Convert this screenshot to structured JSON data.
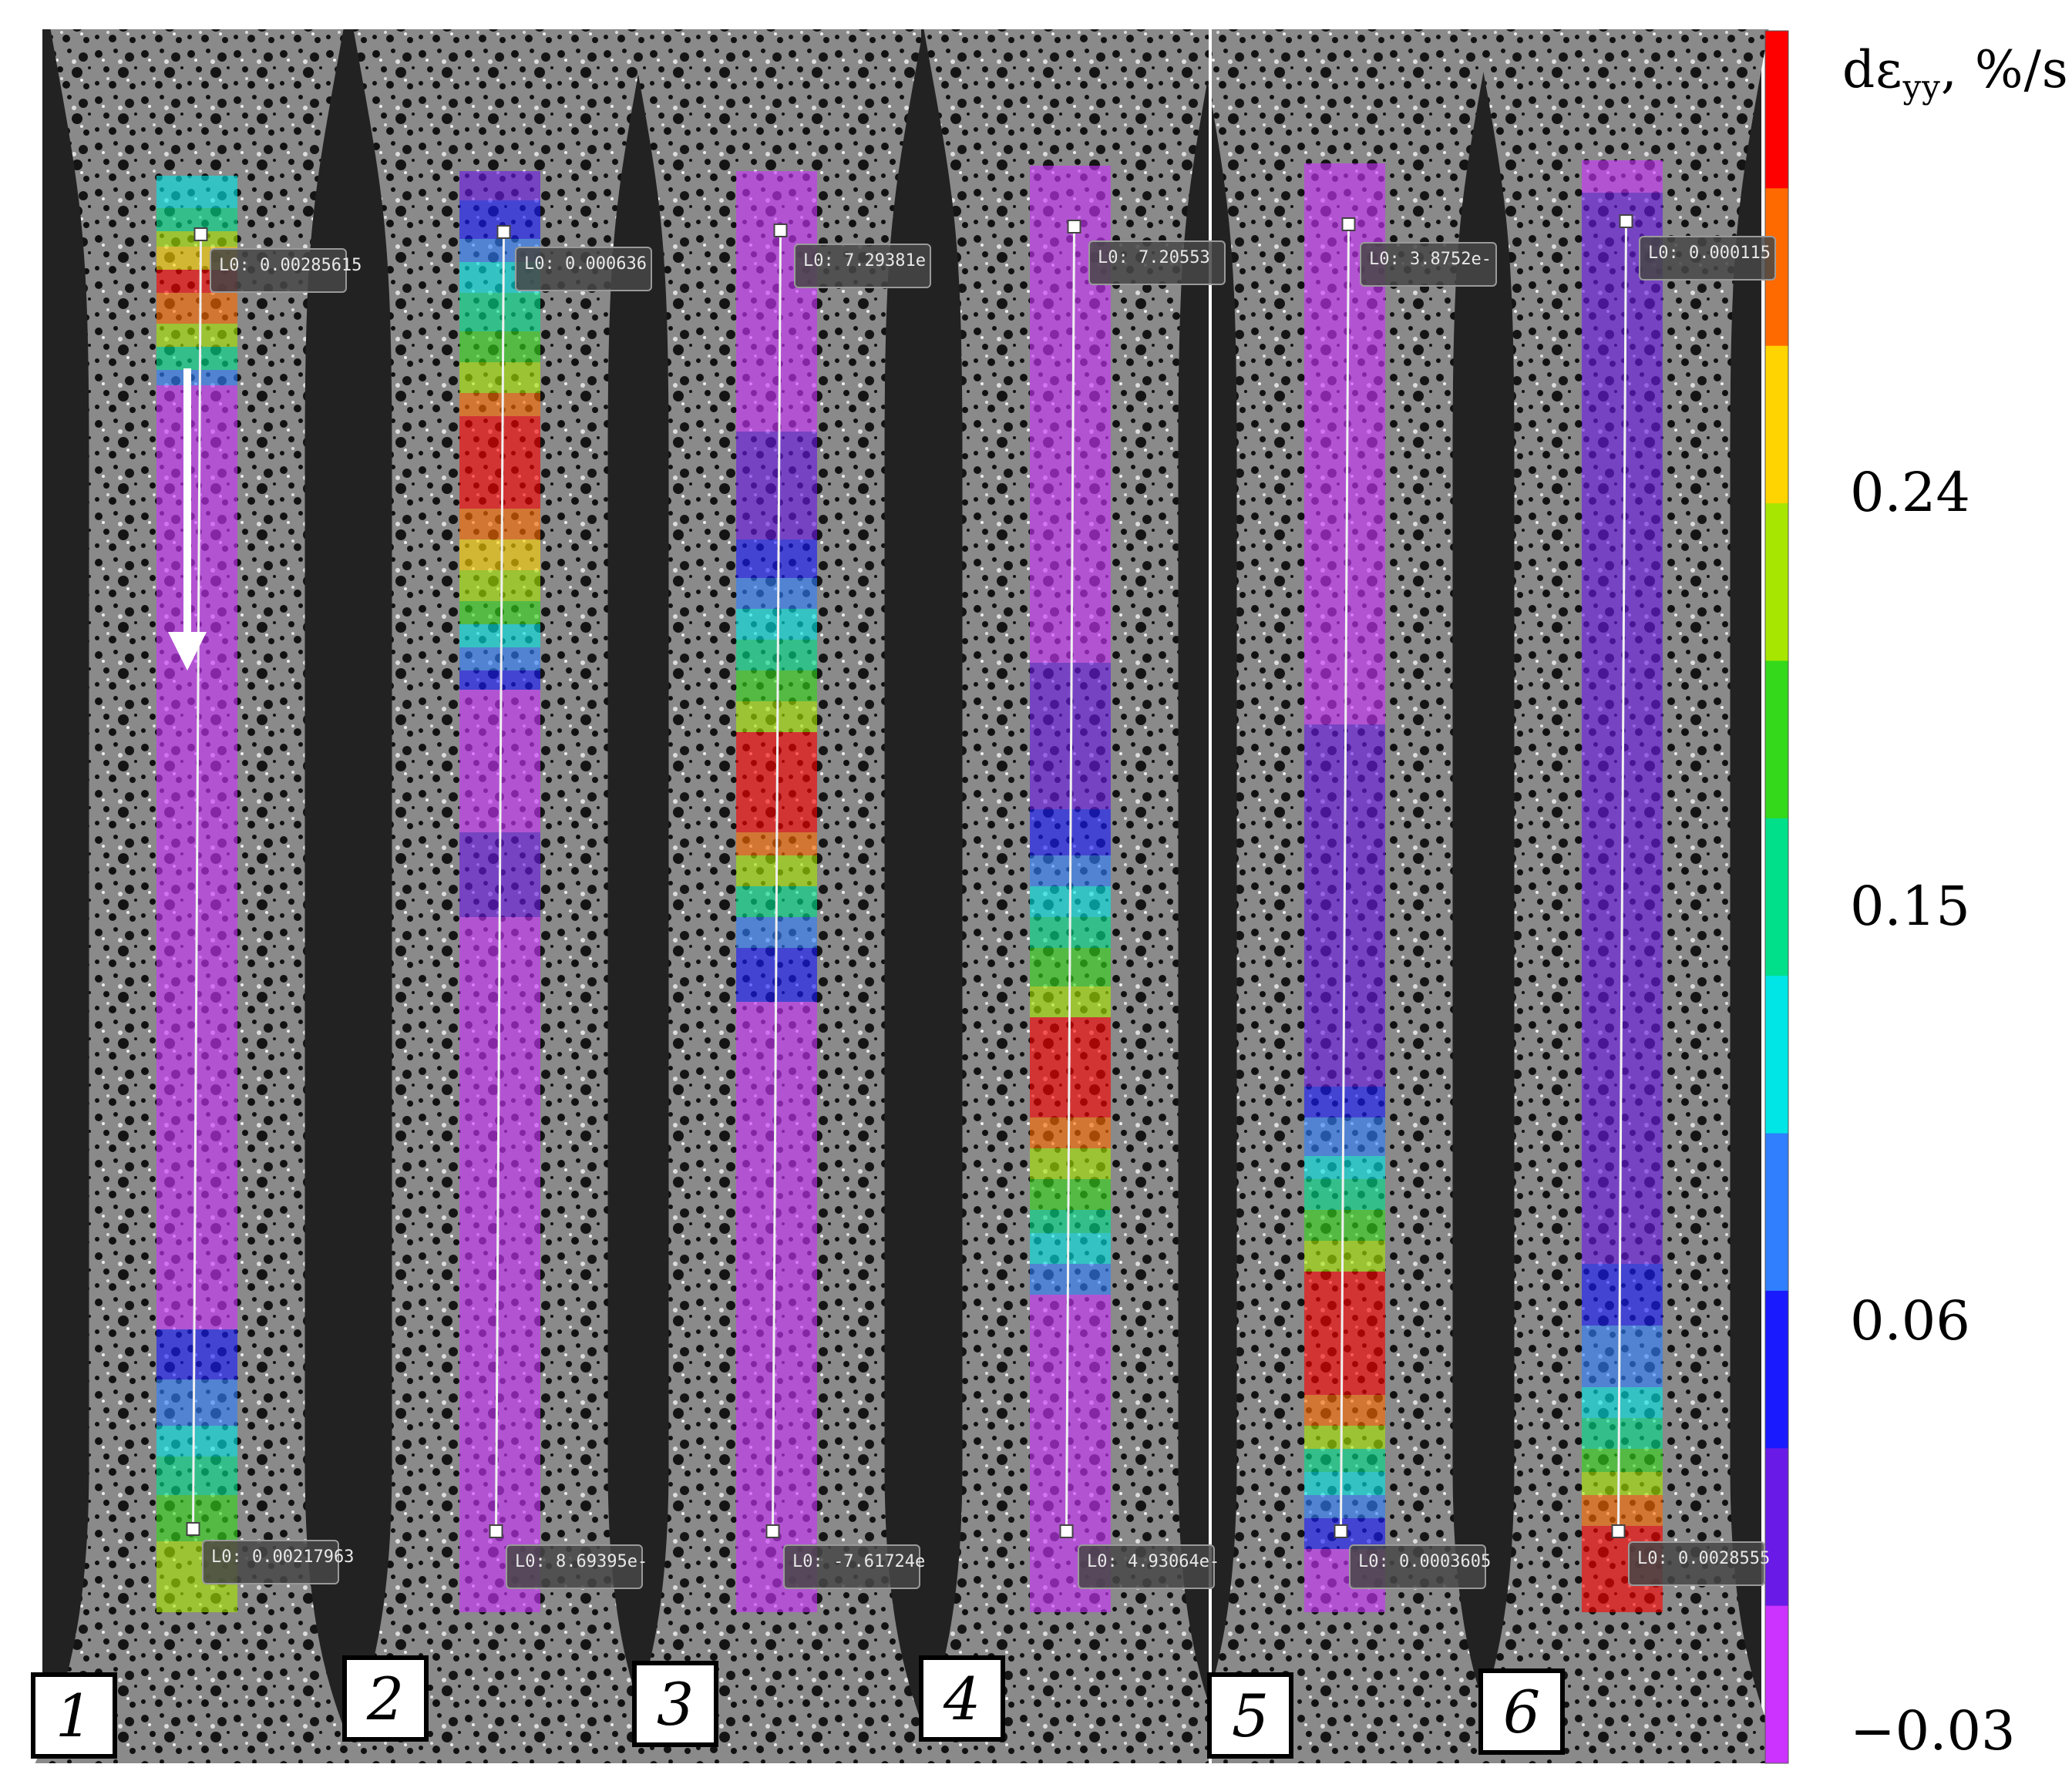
{
  "scale": {
    "title_main": "dε",
    "title_sub": "yy",
    "title_unit": ", %/s",
    "tick_labels": [
      "0.24",
      "0.15",
      "0.06",
      "−0.03"
    ],
    "colors": [
      "#ff0000",
      "#ff6a00",
      "#ffd400",
      "#a6e600",
      "#33d91a",
      "#00e08a",
      "#00e5e5",
      "#2f7fff",
      "#1a1aff",
      "#6a1ae6",
      "#cc33ff"
    ]
  },
  "frames": [
    {
      "label": "1",
      "top_tag": "L0: 0.00285615",
      "bottom_tag": "L0: 0.00217963"
    },
    {
      "label": "2",
      "top_tag": "L0: 0.000636",
      "bottom_tag": "L0: 8.69395e-"
    },
    {
      "label": "3",
      "top_tag": "L0: 7.29381e",
      "bottom_tag": "L0: -7.61724e"
    },
    {
      "label": "4",
      "top_tag": "L0: 7.20553",
      "bottom_tag": "L0: 4.93064e-"
    },
    {
      "label": "5",
      "top_tag": "L0: 3.8752e-",
      "bottom_tag": "L0: 0.0003605"
    },
    {
      "label": "6",
      "top_tag": "L0: 0.000115",
      "bottom_tag": "L0: 0.0028555"
    }
  ]
}
